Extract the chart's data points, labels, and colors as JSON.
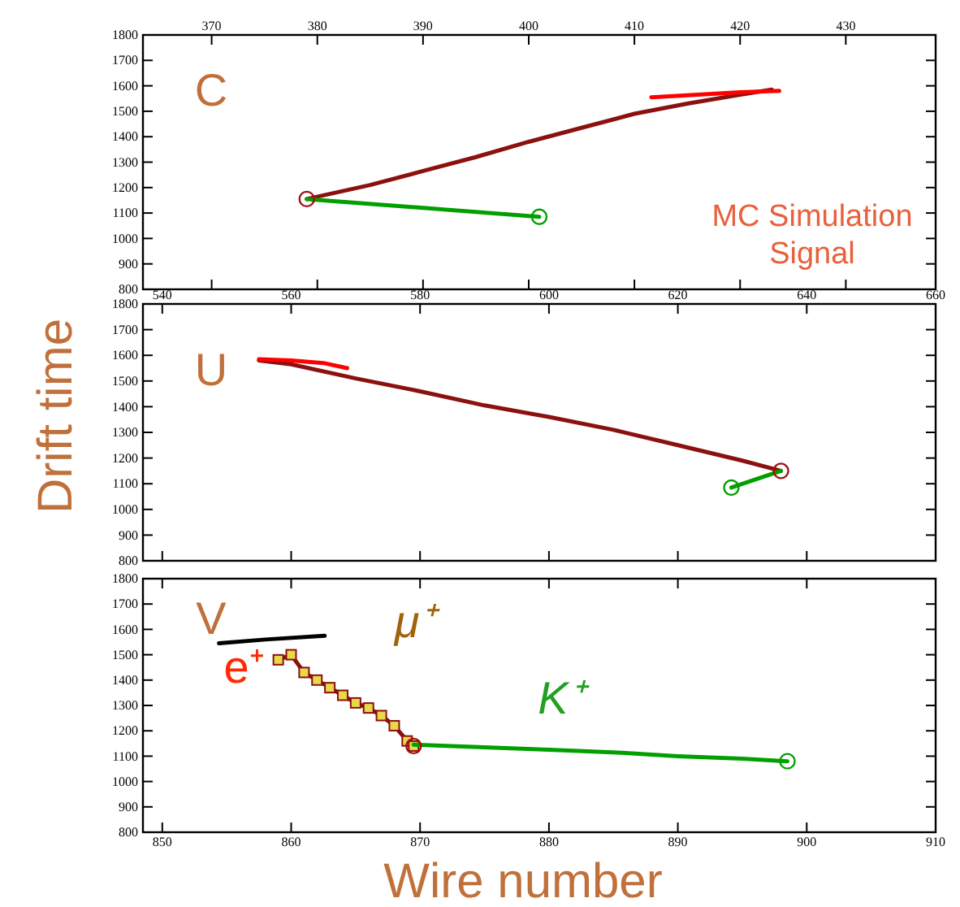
{
  "chart_data": [
    {
      "type": "line",
      "xlim": [
        363.5,
        438.5
      ],
      "xticks": [
        370,
        380,
        390,
        400,
        410,
        420,
        430
      ],
      "ylim": [
        800,
        1800
      ],
      "yticks": [
        800,
        900,
        1000,
        1100,
        1200,
        1300,
        1400,
        1500,
        1600,
        1700,
        1800
      ],
      "grid": false,
      "marker": "none",
      "line_style": "solid",
      "annotations": [
        "C",
        "MC Simulation\nSignal"
      ],
      "series": [
        {
          "color": "#8b1010",
          "x": [
            379,
            385,
            390,
            395,
            400,
            405,
            410,
            415,
            420,
            423
          ],
          "values": [
            1155,
            1210,
            1265,
            1320,
            1380,
            1435,
            1490,
            1530,
            1565,
            1585
          ]
        },
        {
          "color": "#ff0000",
          "x": [
            411.6,
            416,
            420,
            423.7
          ],
          "values": [
            1555,
            1565,
            1575,
            1580
          ]
        },
        {
          "color": "#00a000",
          "x": [
            379,
            390,
            401
          ],
          "values": [
            1155,
            1120,
            1085
          ]
        },
        {
          "type": "scatter",
          "marker": "circle",
          "x": [
            379,
            401
          ],
          "values": [
            1155,
            1085
          ],
          "colors": [
            "#a01010",
            "#00a000"
          ]
        }
      ]
    },
    {
      "type": "line",
      "xlim": [
        537,
        660
      ],
      "xticks": [
        540,
        560,
        580,
        600,
        620,
        640,
        660
      ],
      "ylim": [
        800,
        1800
      ],
      "yticks": [
        800,
        900,
        1000,
        1100,
        1200,
        1300,
        1400,
        1500,
        1600,
        1700,
        1800
      ],
      "ylabel": "Drift time",
      "grid": false,
      "marker": "none",
      "line_style": "solid",
      "annotations": [
        "U"
      ],
      "series": [
        {
          "color": "#8b1010",
          "x": [
            555,
            560,
            570,
            580,
            590,
            600,
            610,
            620,
            630,
            636
          ],
          "values": [
            1580,
            1565,
            1510,
            1460,
            1405,
            1360,
            1310,
            1250,
            1190,
            1150
          ]
        },
        {
          "color": "#ff0000",
          "x": [
            555,
            560,
            565,
            568.7
          ],
          "values": [
            1585,
            1580,
            1570,
            1550
          ]
        },
        {
          "color": "#00a000",
          "x": [
            636,
            628.3
          ],
          "values": [
            1150,
            1085
          ]
        },
        {
          "type": "scatter",
          "marker": "circle",
          "x": [
            636,
            628.3
          ],
          "values": [
            1150,
            1085
          ],
          "colors": [
            "#a01010",
            "#00a000"
          ]
        }
      ]
    },
    {
      "type": "line",
      "xlim": [
        848.5,
        910
      ],
      "xticks": [
        850,
        860,
        870,
        880,
        890,
        900,
        910
      ],
      "ylim": [
        800,
        1800
      ],
      "yticks": [
        800,
        900,
        1000,
        1100,
        1200,
        1300,
        1400,
        1500,
        1600,
        1700,
        1800
      ],
      "xlabel": "Wire number",
      "grid": false,
      "marker": "none",
      "line_style": "solid",
      "annotations": [
        "V",
        "e⁺",
        "μ⁺",
        "K⁺"
      ],
      "series": [
        {
          "color": "#000000",
          "x": [
            854.4,
            858,
            862.6
          ],
          "values": [
            1545,
            1560,
            1575
          ]
        },
        {
          "color": "#8b1010",
          "marker": "square",
          "x": [
            859,
            860,
            861,
            862,
            863,
            864,
            865,
            866,
            867,
            868,
            869,
            869.5
          ],
          "values": [
            1480,
            1500,
            1430,
            1400,
            1370,
            1340,
            1310,
            1290,
            1260,
            1220,
            1160,
            1140
          ]
        },
        {
          "color": "#00a000",
          "x": [
            869.5,
            875,
            880,
            885,
            890,
            895,
            898.5
          ],
          "values": [
            1145,
            1135,
            1125,
            1115,
            1100,
            1090,
            1080
          ]
        },
        {
          "type": "scatter",
          "marker": "circle",
          "x": [
            869.5,
            898.5
          ],
          "values": [
            1140,
            1080
          ],
          "colors": [
            "#a01010",
            "#00a000"
          ]
        }
      ]
    }
  ]
}
